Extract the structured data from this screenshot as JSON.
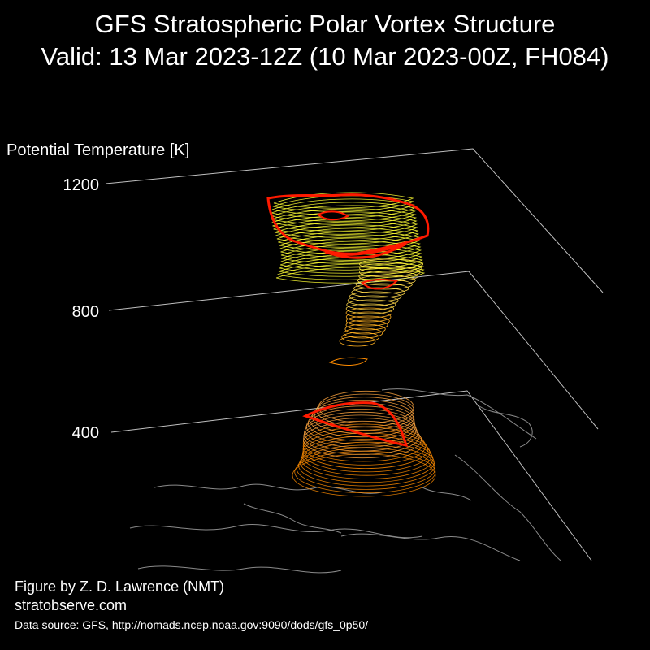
{
  "header": {
    "title": "GFS Stratospheric Polar Vortex Structure",
    "subtitle": "Valid: 13 Mar 2023-12Z  (10 Mar 2023-00Z, FH084)"
  },
  "footer": {
    "credit": "Figure by Z. D. Lawrence (NMT)",
    "site": "stratobserve.com",
    "source": "Data source: GFS, http://nomads.ncep.noaa.gov:9090/dods/gfs_0p50/"
  },
  "chart_data": {
    "type": "3d-contour",
    "zlabel": "Potential Temperature [K]",
    "z_ticks": [
      400,
      800,
      1200
    ],
    "colors": {
      "background": "#000000",
      "axis_lines": "#bfbfbf",
      "coastlines": "#8a8a8a",
      "vortex_low": "#ff8c00",
      "vortex_high": "#ffff33",
      "vortex_edge": "#ff1a00"
    },
    "grid": true
  }
}
